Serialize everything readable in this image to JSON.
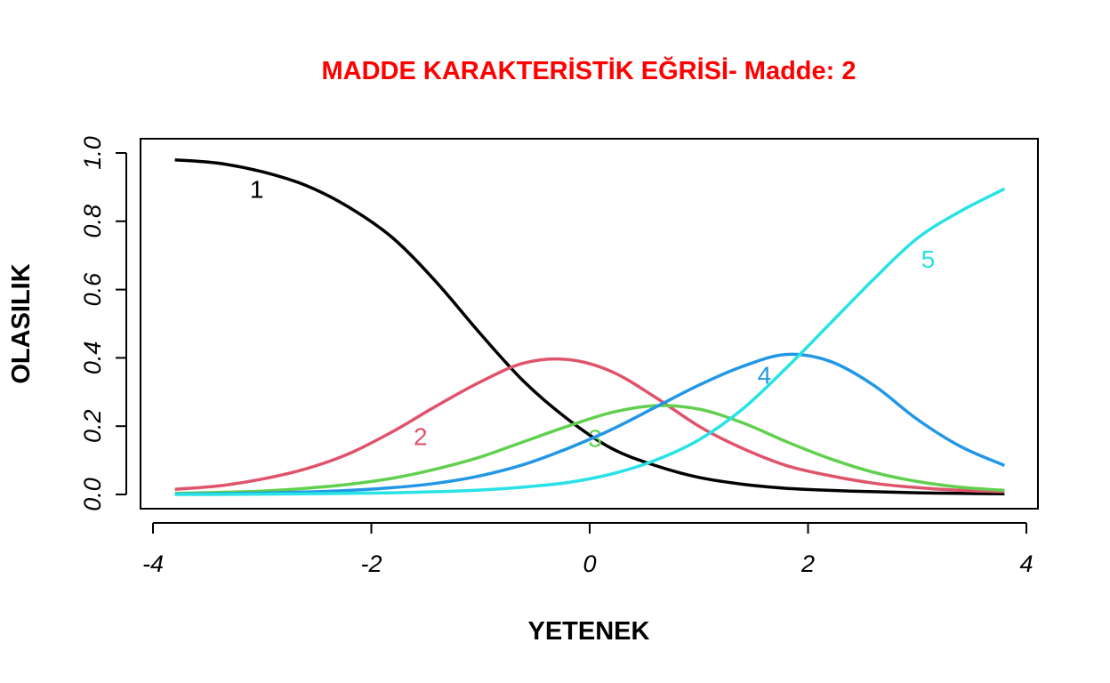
{
  "chart_data": {
    "type": "line",
    "title": "MADDE KARAKTERİSTİK EĞRİSİ- Madde: 2",
    "title_color": "#FF0000",
    "xlabel": "YETENEK",
    "ylabel": "OLASILIK",
    "xlim": [
      -4,
      4
    ],
    "ylim": [
      0,
      1
    ],
    "xticks": [
      -4,
      -2,
      0,
      2,
      4
    ],
    "xtick_labels": [
      "-4",
      "-2",
      "0",
      "2",
      "4"
    ],
    "yticks": [
      0,
      0.2,
      0.4,
      0.6,
      0.8,
      1
    ],
    "ytick_labels": [
      "0.0",
      "0.2",
      "0.4",
      "0.6",
      "0.8",
      "1.0"
    ],
    "x": [
      -3.8,
      -3.4,
      -3.0,
      -2.6,
      -2.2,
      -1.8,
      -1.4,
      -1.0,
      -0.6,
      -0.2,
      0.2,
      0.6,
      1.0,
      1.4,
      1.8,
      2.2,
      2.6,
      3.0,
      3.4,
      3.8
    ],
    "series": [
      {
        "name": "1",
        "color": "#000000",
        "label": {
          "text": "1",
          "x": -3.05,
          "y": 0.895
        },
        "values": [
          0.98,
          0.97,
          0.945,
          0.905,
          0.84,
          0.75,
          0.62,
          0.47,
          0.33,
          0.22,
          0.135,
          0.085,
          0.05,
          0.03,
          0.018,
          0.012,
          0.008,
          0.005,
          0.003,
          0.002
        ]
      },
      {
        "name": "2",
        "color": "#DF536B",
        "label": {
          "text": "2",
          "x": -1.55,
          "y": 0.17
        },
        "values": [
          0.015,
          0.025,
          0.045,
          0.075,
          0.12,
          0.185,
          0.26,
          0.33,
          0.385,
          0.395,
          0.36,
          0.285,
          0.2,
          0.135,
          0.085,
          0.055,
          0.033,
          0.02,
          0.012,
          0.008
        ]
      },
      {
        "name": "3",
        "color": "#61D04F",
        "label": {
          "text": "3",
          "x": 0.05,
          "y": 0.165
        },
        "values": [
          0.003,
          0.006,
          0.01,
          0.018,
          0.03,
          0.048,
          0.075,
          0.11,
          0.155,
          0.2,
          0.24,
          0.26,
          0.25,
          0.21,
          0.155,
          0.105,
          0.065,
          0.038,
          0.021,
          0.012
        ]
      },
      {
        "name": "4",
        "color": "#2297E6",
        "label": {
          "text": "4",
          "x": 1.6,
          "y": 0.35
        },
        "values": [
          0.001,
          0.002,
          0.004,
          0.007,
          0.012,
          0.02,
          0.033,
          0.055,
          0.088,
          0.135,
          0.19,
          0.255,
          0.32,
          0.375,
          0.41,
          0.39,
          0.32,
          0.22,
          0.14,
          0.085
        ]
      },
      {
        "name": "5",
        "color": "#28E2E5",
        "label": {
          "text": "5",
          "x": 3.1,
          "y": 0.69
        },
        "values": [
          0.0,
          0.0,
          0.001,
          0.002,
          0.003,
          0.005,
          0.008,
          0.013,
          0.022,
          0.035,
          0.06,
          0.1,
          0.16,
          0.25,
          0.37,
          0.5,
          0.63,
          0.75,
          0.83,
          0.895
        ]
      }
    ]
  }
}
